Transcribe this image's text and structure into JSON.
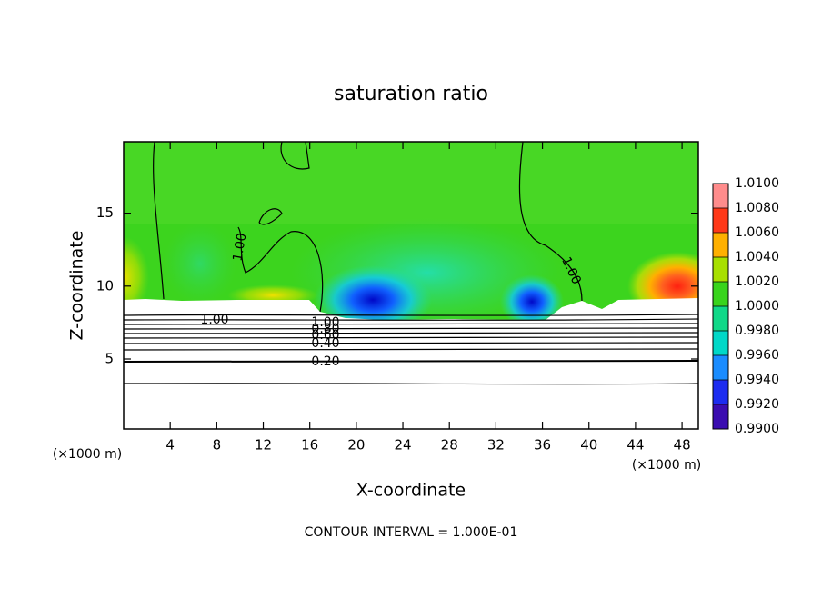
{
  "chart_data": {
    "type": "contour",
    "title": "saturation ratio",
    "x_label": "X-coordinate",
    "y_label": "Z-coordinate",
    "x_unit": "(×1000 m)",
    "y_unit": "(×1000 m)",
    "xlim": [
      0,
      49.4
    ],
    "ylim": [
      0.2,
      19.9
    ],
    "xticks": [
      4,
      8,
      12,
      16,
      20,
      24,
      28,
      32,
      36,
      40,
      44,
      48
    ],
    "yticks": [
      5,
      10,
      15
    ],
    "contour_labels": [
      "1.00",
      "1.00",
      "1.00",
      "1.00",
      "0.80",
      "0.60",
      "0.40",
      "0.20"
    ],
    "footnote": "CONTOUR INTERVAL = 1.000E-01",
    "colorbar": {
      "ticks": [
        {
          "value": 0.99,
          "label": "0.9900"
        },
        {
          "value": 0.992,
          "label": "0.9920"
        },
        {
          "value": 0.994,
          "label": "0.9940"
        },
        {
          "value": 0.996,
          "label": "0.9960"
        },
        {
          "value": 0.998,
          "label": "0.9980"
        },
        {
          "value": 1.0,
          "label": "1.0000"
        },
        {
          "value": 1.002,
          "label": "1.0020"
        },
        {
          "value": 1.004,
          "label": "1.0040"
        },
        {
          "value": 1.006,
          "label": "1.0060"
        },
        {
          "value": 1.008,
          "label": "1.0080"
        },
        {
          "value": 1.01,
          "label": "1.0100"
        }
      ],
      "colors": [
        "#3a0cb0",
        "#1c2cf0",
        "#1a8cff",
        "#00d8c8",
        "#10d888",
        "#38d41c",
        "#a8e000",
        "#ffb000",
        "#ff3818",
        "#ff8c8c"
      ]
    }
  }
}
